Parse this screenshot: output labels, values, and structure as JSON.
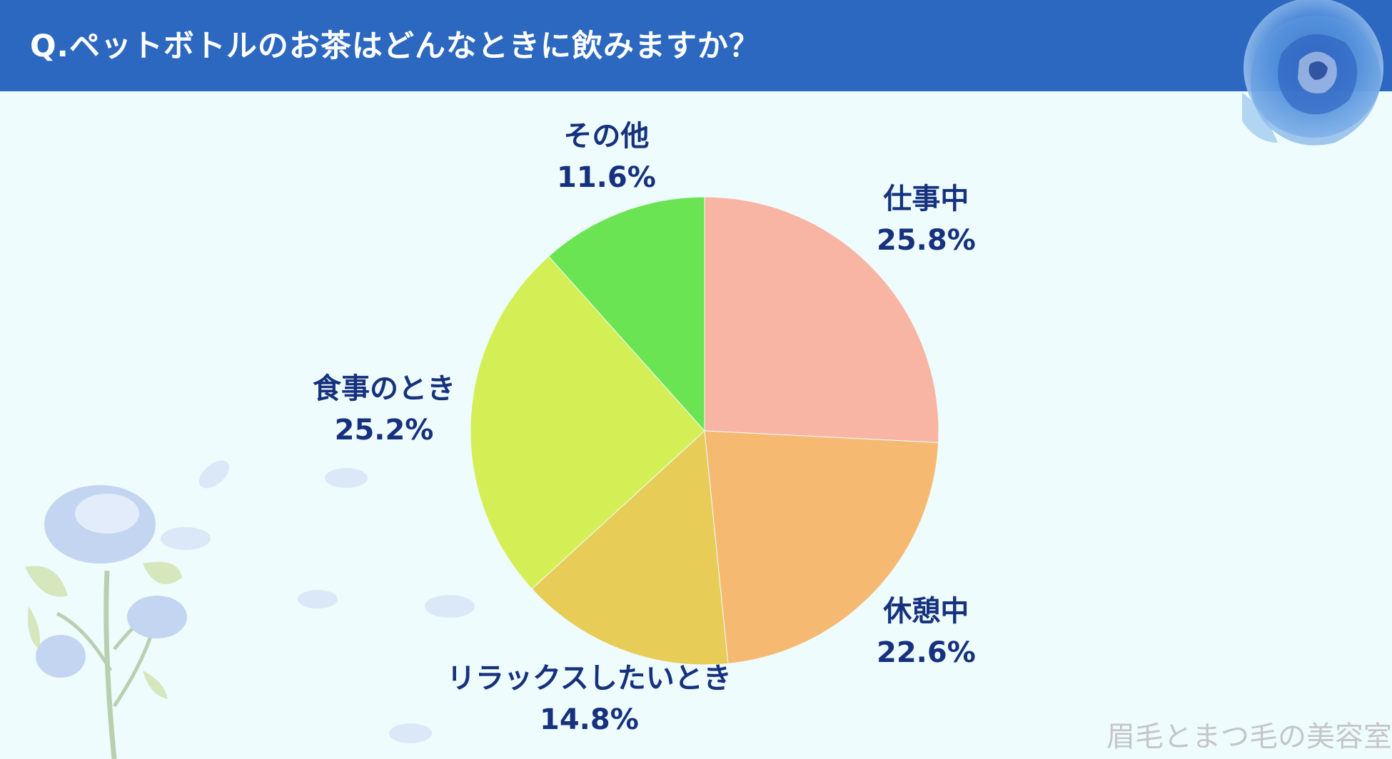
{
  "header": {
    "title": "Q.ペットボトルのお茶はどんなときに飲みますか？"
  },
  "watermark": "眉毛とまつ毛の美容室",
  "colors": {
    "header_bg": "#2c68bf",
    "background": "#eefcfd",
    "label_text": "#16317d"
  },
  "chart_data": {
    "type": "pie",
    "title": "Q.ペットボトルのお茶はどんなときに飲みますか？",
    "start": "12 o'clock, clockwise",
    "slices": [
      {
        "name": "仕事中",
        "value": 25.8,
        "label": "25.8%",
        "color": "#f9b5a4"
      },
      {
        "name": "休憩中",
        "value": 22.6,
        "label": "22.6%",
        "color": "#f6b972"
      },
      {
        "name": "リラックスしたいとき",
        "value": 14.8,
        "label": "14.8%",
        "color": "#e7cd57"
      },
      {
        "name": "食事のとき",
        "value": 25.2,
        "label": "25.2%",
        "color": "#d4ef56"
      },
      {
        "name": "その他",
        "value": 11.6,
        "label": "11.6%",
        "color": "#6ae453"
      }
    ]
  }
}
